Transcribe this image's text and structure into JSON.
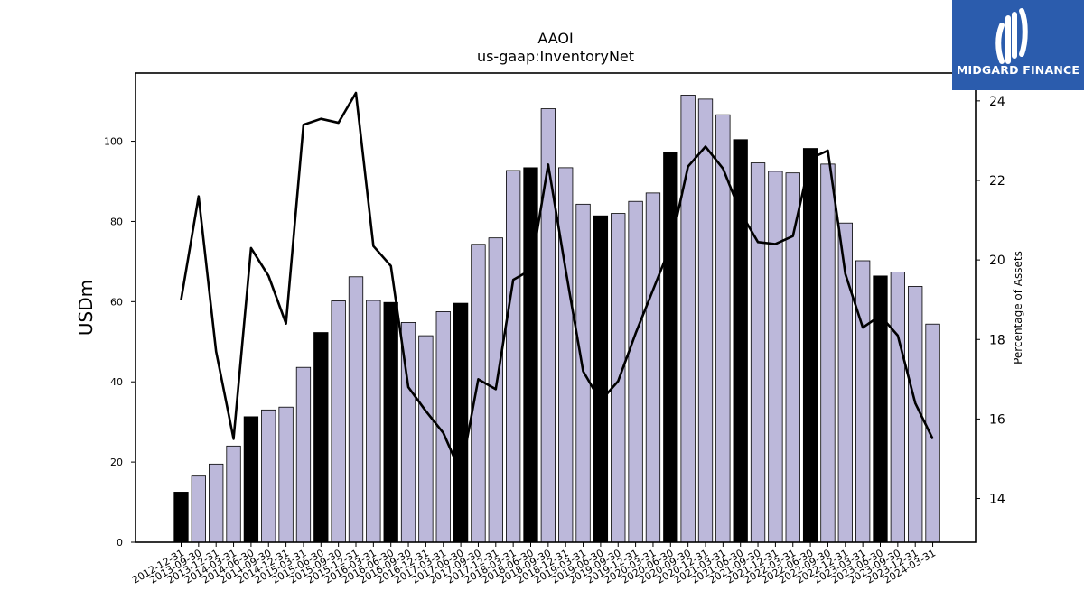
{
  "brand": {
    "name": "MIDGARD FINANCE",
    "bg": "#2b5cad"
  },
  "chart_data": {
    "type": "bar",
    "title": "AAOI",
    "subtitle": "us-gaap:InventoryNet",
    "ylabel": "USDm",
    "y2label": "Percentage of Assets",
    "ylim": [
      0,
      117
    ],
    "y2lim": [
      12.9,
      24.7
    ],
    "yticks": [
      0,
      20,
      40,
      60,
      80,
      100
    ],
    "y2ticks": [
      14,
      16,
      18,
      20,
      22,
      24
    ],
    "grid": false,
    "categories": [
      "2012-12-31",
      "2013-09-30",
      "2013-12-31",
      "2014-03-31",
      "2014-06-30",
      "2014-09-30",
      "2014-12-31",
      "2015-03-31",
      "2015-06-30",
      "2015-09-30",
      "2015-12-31",
      "2016-03-31",
      "2016-06-30",
      "2016-09-30",
      "2016-12-31",
      "2017-03-31",
      "2017-06-30",
      "2017-09-30",
      "2017-12-31",
      "2018-03-31",
      "2018-06-30",
      "2018-09-30",
      "2018-12-31",
      "2019-03-31",
      "2019-06-30",
      "2019-09-30",
      "2019-12-31",
      "2020-03-31",
      "2020-06-30",
      "2020-09-30",
      "2020-12-31",
      "2021-03-31",
      "2021-06-30",
      "2021-09-30",
      "2021-12-31",
      "2022-03-31",
      "2022-06-30",
      "2022-09-30",
      "2022-12-31",
      "2023-03-31",
      "2023-06-30",
      "2023-09-30",
      "2023-12-31",
      "2024-03-31"
    ],
    "series": [
      {
        "kind": "bar",
        "values": [
          12.5,
          16.5,
          19.5,
          24.0,
          31.3,
          33.0,
          33.7,
          43.6,
          52.3,
          60.2,
          66.2,
          60.3,
          59.8,
          54.8,
          51.5,
          57.5,
          59.6,
          74.3,
          75.9,
          92.7,
          93.4,
          108.1,
          93.4,
          84.3,
          81.4,
          82.0,
          85.0,
          87.1,
          97.2,
          111.5,
          110.5,
          106.6,
          100.4,
          94.6,
          92.5,
          92.1,
          98.2,
          94.3,
          79.6,
          70.2,
          66.4,
          67.4,
          63.8,
          54.4
        ],
        "highlight_every": 4,
        "highlight_color": "#000000",
        "color": "#bcb8da",
        "edge_color": "#000000"
      },
      {
        "kind": "line",
        "axis": "y2",
        "values": [
          19.0,
          21.6,
          17.7,
          15.5,
          20.3,
          19.6,
          18.4,
          23.4,
          23.55,
          23.45,
          24.2,
          20.35,
          19.85,
          16.8,
          16.2,
          15.65,
          14.65,
          17.0,
          16.75,
          19.5,
          19.75,
          22.4,
          19.75,
          17.2,
          16.45,
          16.95,
          18.15,
          19.25,
          20.35,
          22.35,
          22.85,
          22.3,
          21.2,
          20.45,
          20.4,
          20.6,
          22.55,
          22.75,
          19.65,
          18.3,
          18.6,
          18.1,
          16.4,
          15.5
        ],
        "color": "#000000"
      }
    ]
  }
}
